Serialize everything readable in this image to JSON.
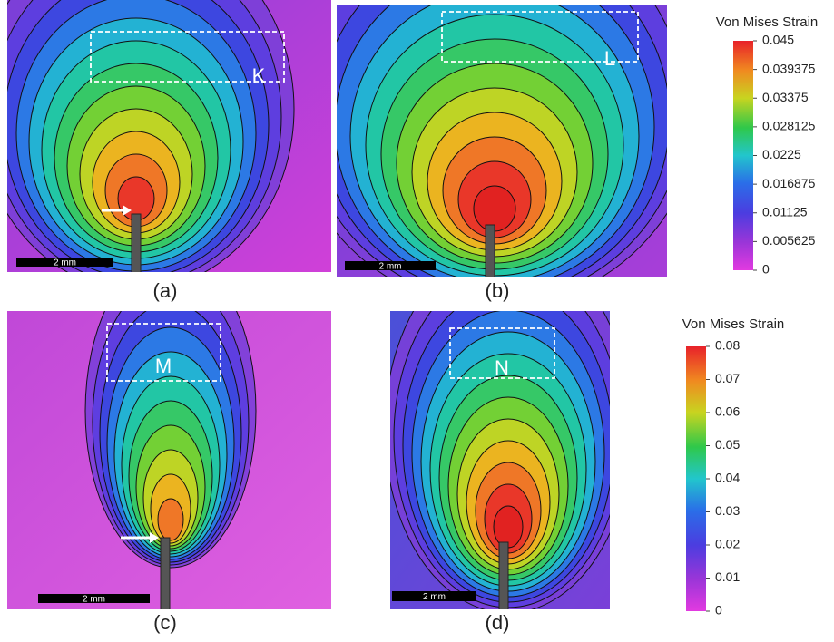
{
  "panels": [
    {
      "label": "(a)",
      "box_label": "K",
      "scale_text": "2 mm"
    },
    {
      "label": "(b)",
      "box_label": "L",
      "scale_text": "2 mm"
    },
    {
      "label": "(c)",
      "box_label": "M",
      "scale_text": "2 mm"
    },
    {
      "label": "(d)",
      "box_label": "N",
      "scale_text": "2 mm"
    }
  ],
  "colorbars": [
    {
      "title": "Von Mises Strain",
      "ticks": [
        0.045,
        0.039375,
        0.03375,
        0.028125,
        0.0225,
        0.016875,
        0.01125,
        0.005625,
        0
      ]
    },
    {
      "title": "Von Mises Strain",
      "ticks": [
        0.08,
        0.07,
        0.06,
        0.05,
        0.04,
        0.03,
        0.02,
        0.01,
        0
      ]
    }
  ]
}
